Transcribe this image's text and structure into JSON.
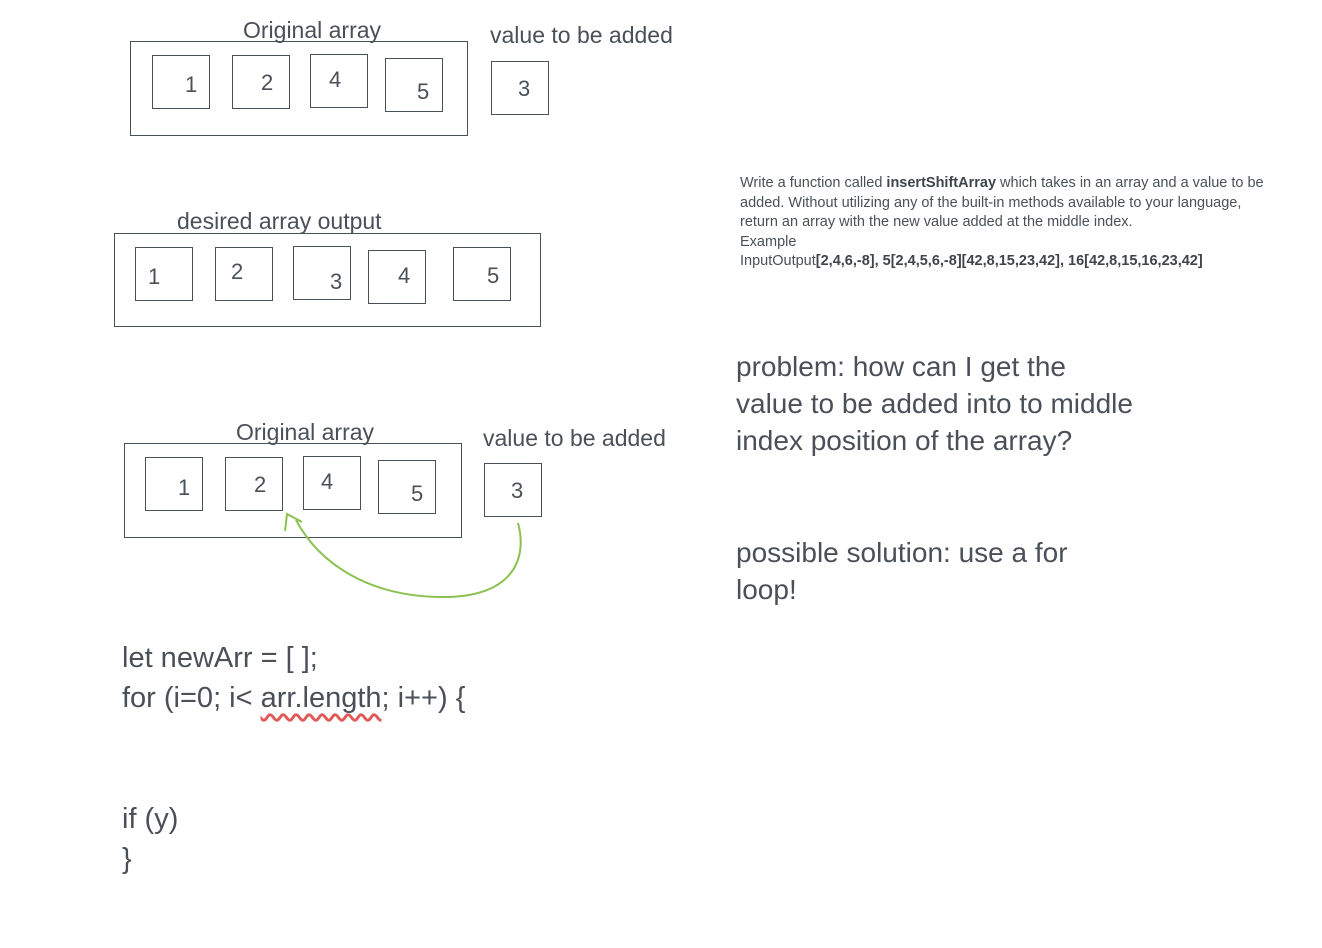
{
  "diagram1": {
    "title": "Original array",
    "cells": [
      "1",
      "2",
      "4",
      "5"
    ],
    "value_label": "value to be added",
    "value": "3"
  },
  "diagram2": {
    "title": "desired array output",
    "cells": [
      "1",
      "2",
      "3",
      "4",
      "5"
    ]
  },
  "diagram3": {
    "title": "Original array",
    "cells": [
      "1",
      "2",
      "4",
      "5"
    ],
    "value_label": "value to be added",
    "value": "3"
  },
  "description": {
    "part1": "Write a function called ",
    "function_name": "insertShiftArray",
    "part2": " which takes in an array and a value to be added. Without utilizing any of the built-in methods available to your language, return an array with the new value added at the middle index.",
    "example_label": "Example",
    "io_prefix": "InputOutput",
    "io_values": "[2,4,6,-8], 5[2,4,5,6,-8][42,8,15,23,42], 16[42,8,15,16,23,42]"
  },
  "problem": "problem: how can I get the value to be added into to middle index position of the array?",
  "solution": "possible solution: use a for loop!",
  "code": {
    "line1": "let newArr = [ ];",
    "line2_a": "for (i=0; i< ",
    "line2_b": "arr.length",
    "line2_c": "; i++) {",
    "line3": "if (y)",
    "line4": "}"
  },
  "colors": {
    "ink": "#4a5058",
    "arrow": "#8cc152",
    "spell": "#e05a5a"
  }
}
